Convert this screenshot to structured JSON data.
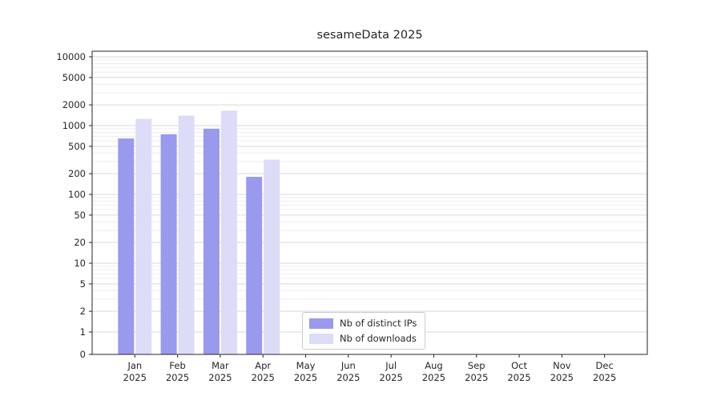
{
  "chart_data": {
    "type": "bar",
    "title": "sesameData 2025",
    "categories": [
      "Jan",
      "Feb",
      "Mar",
      "Apr",
      "May",
      "Jun",
      "Jul",
      "Aug",
      "Sep",
      "Oct",
      "Nov",
      "Dec"
    ],
    "year_label": "2025",
    "series": [
      {
        "name": "Nb of distinct IPs",
        "color": "#9999ee",
        "values": [
          650,
          750,
          900,
          180,
          0,
          0,
          0,
          0,
          0,
          0,
          0,
          0
        ]
      },
      {
        "name": "Nb of downloads",
        "color": "#dcdcf8",
        "values": [
          1250,
          1400,
          1650,
          320,
          0,
          0,
          0,
          0,
          0,
          0,
          0,
          0
        ]
      }
    ],
    "y_ticks": [
      0,
      1,
      2,
      5,
      10,
      20,
      50,
      100,
      200,
      500,
      1000,
      2000,
      5000,
      10000
    ],
    "y_scale": "symlog",
    "ylim": [
      0,
      10000
    ],
    "xlabel": "",
    "ylabel": "",
    "grid": true,
    "legend_position": "lower center"
  }
}
